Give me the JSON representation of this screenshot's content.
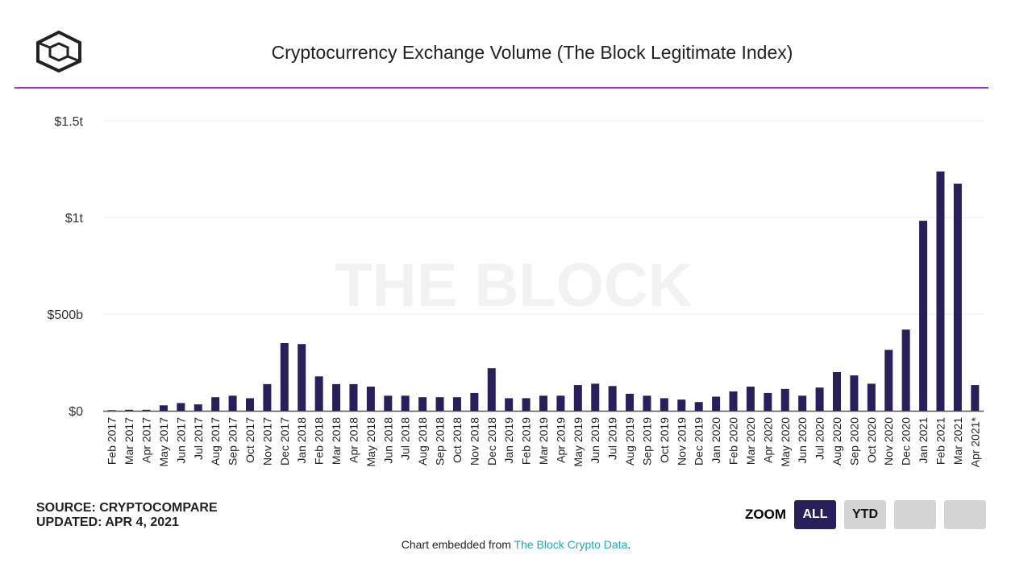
{
  "header": {
    "title": "Cryptocurrency Exchange Volume (The Block Legitimate Index)"
  },
  "watermark": "THE BLOCK",
  "footer": {
    "source": "SOURCE: CRYPTOCOMPARE",
    "updated": "UPDATED: APR 4, 2021",
    "embed_prefix": "Chart embedded from ",
    "embed_link": "The Block Crypto Data",
    "embed_suffix": "."
  },
  "zoom": {
    "label": "ZOOM",
    "buttons": [
      "ALL",
      "YTD",
      "",
      ""
    ],
    "active": "ALL"
  },
  "colors": {
    "bar": "#28205c",
    "accent": "#a133d0",
    "link": "#20a8b8"
  },
  "chart_data": {
    "type": "bar",
    "title": "Cryptocurrency Exchange Volume (The Block Legitimate Index)",
    "ylim": [
      0,
      1500
    ],
    "yunit": "billion USD",
    "yticks": [
      {
        "v": 0,
        "label": "$0"
      },
      {
        "v": 500,
        "label": "$500b"
      },
      {
        "v": 1000,
        "label": "$1t"
      },
      {
        "v": 1500,
        "label": "$1.5t"
      }
    ],
    "grid": true,
    "categories": [
      "Feb 2017",
      "Mar 2017",
      "Apr 2017",
      "May 2017",
      "Jun 2017",
      "Jul 2017",
      "Aug 2017",
      "Sep 2017",
      "Oct 2017",
      "Nov 2017",
      "Dec 2017",
      "Jan 2018",
      "Feb 2018",
      "Mar 2018",
      "Apr 2018",
      "May 2018",
      "Jun 2018",
      "Jul 2018",
      "Aug 2018",
      "Sep 2018",
      "Oct 2018",
      "Nov 2018",
      "Dec 2018",
      "Jan 2019",
      "Feb 2019",
      "Mar 2019",
      "Apr 2019",
      "May 2019",
      "Jun 2019",
      "Jul 2019",
      "Aug 2019",
      "Sep 2019",
      "Oct 2019",
      "Nov 2019",
      "Dec 2019",
      "Jan 2020",
      "Feb 2020",
      "Mar 2020",
      "Apr 2020",
      "May 2020",
      "Jun 2020",
      "Jul 2020",
      "Aug 2020",
      "Sep 2020",
      "Oct 2020",
      "Nov 2020",
      "Dec 2020",
      "Jan 2021",
      "Feb 2021",
      "Mar 2021",
      "Apr 2021*"
    ],
    "values": [
      3,
      5,
      5,
      28,
      40,
      33,
      70,
      78,
      65,
      138,
      350,
      345,
      178,
      138,
      138,
      125,
      78,
      78,
      70,
      70,
      70,
      92,
      220,
      65,
      65,
      78,
      78,
      133,
      140,
      128,
      88,
      78,
      65,
      58,
      45,
      73,
      100,
      125,
      92,
      113,
      78,
      120,
      200,
      183,
      140,
      315,
      420,
      983,
      1238,
      1175,
      133
    ]
  }
}
